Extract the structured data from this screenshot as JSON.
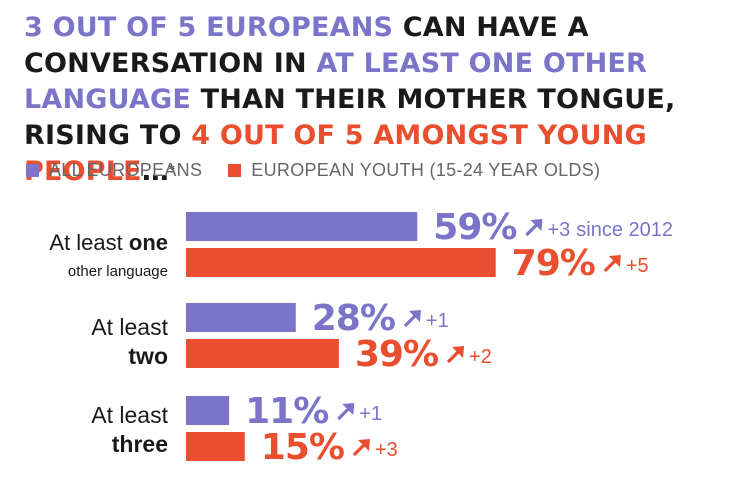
{
  "header": {
    "title_parts": [
      {
        "text": "3 OUT OF 5 EUROPEANS",
        "tone": "blue"
      },
      {
        "text": " CAN HAVE A CONVERSATION IN ",
        "tone": "dark"
      },
      {
        "text": "AT LEAST ONE OTHER LANGUAGE",
        "tone": "blue"
      },
      {
        "text": " THAN THEIR MOTHER TONGUE, RISING TO ",
        "tone": "dark"
      },
      {
        "text": "4 OUT OF 5 AMONGST YOUNG PEOPLE",
        "tone": "red"
      },
      {
        "text": "…",
        "tone": "dark"
      }
    ],
    "footnote_mark": "*"
  },
  "colors": {
    "all_europeans": "#7b74c8",
    "youth": "#e94e2f",
    "text": "#1a1a1a"
  },
  "legend": {
    "items": [
      {
        "label": "ALL EUROPEANS",
        "color": "#7b74c8"
      },
      {
        "label": "EUROPEAN YOUTH (15-24 YEAR OLDS)",
        "color": "#e94e2f"
      }
    ]
  },
  "chart_data": {
    "type": "bar",
    "orientation": "horizontal",
    "unit": "%",
    "xlim": [
      0,
      100
    ],
    "grid": false,
    "legend_position": "top-left",
    "categories": [
      [
        {
          "text": "At least ",
          "bold": false
        },
        {
          "text": "one",
          "bold": true
        }
      ],
      [
        {
          "text": "At least",
          "bold": false
        }
      ],
      [
        {
          "text": "At least",
          "bold": false
        }
      ]
    ],
    "category_sublines": [
      [
        {
          "text": "other language",
          "bold": false,
          "small": true
        }
      ],
      [
        {
          "text": "two",
          "bold": true
        }
      ],
      [
        {
          "text": "three",
          "bold": true
        }
      ]
    ],
    "series": [
      {
        "name": "ALL EUROPEANS",
        "color": "#7b74c8",
        "values": [
          59,
          28,
          11
        ],
        "changes": [
          "+3",
          "+1",
          "+1"
        ]
      },
      {
        "name": "EUROPEAN YOUTH (15-24 YEAR OLDS)",
        "color": "#e94e2f",
        "values": [
          79,
          39,
          15
        ],
        "changes": [
          "+5",
          "+2",
          "+3"
        ]
      }
    ],
    "annotation": "since 2012",
    "annotation_target": {
      "series": 0,
      "category": 0
    },
    "change_icon": "arrow-up-right-icon"
  }
}
